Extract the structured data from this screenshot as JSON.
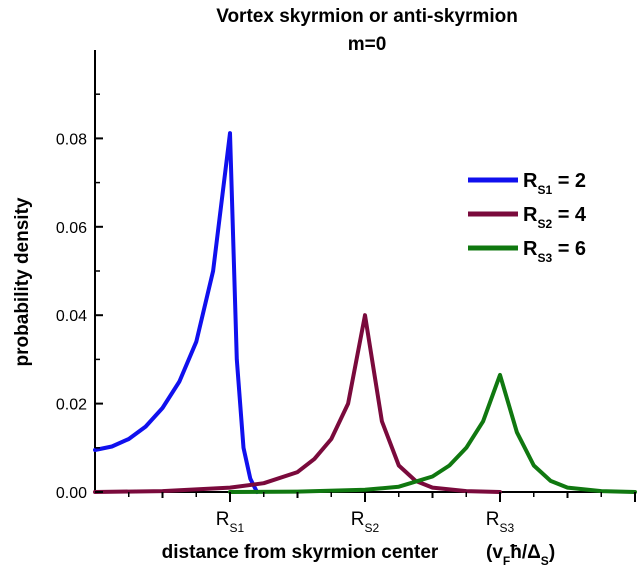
{
  "chart_data": {
    "type": "line",
    "title": "Vortex skyrmion or anti-skyrmion",
    "subtitle": "m=0",
    "xlabel": "distance from skyrmion center",
    "x_unit": "(v_Fħ/Δ_S)",
    "ylabel": "probability density",
    "ylim": [
      0,
      0.1
    ],
    "yticks": [
      "0.00",
      "0.02",
      "0.04",
      "0.06",
      "0.08"
    ],
    "x_tick_labels": [
      "R_S1",
      "R_S2",
      "R_S3"
    ],
    "xlim": [
      0,
      8
    ],
    "grid": false,
    "legend_position": "right",
    "series": [
      {
        "name": "R_S1 = 2",
        "color": "#1010ee",
        "x": [
          0,
          0.25,
          0.5,
          0.75,
          1.0,
          1.25,
          1.5,
          1.75,
          2.0,
          2.1,
          2.2,
          2.3,
          2.4
        ],
        "y": [
          0.0095,
          0.0103,
          0.012,
          0.0148,
          0.019,
          0.025,
          0.034,
          0.05,
          0.0812,
          0.03,
          0.01,
          0.003,
          0.0
        ]
      },
      {
        "name": "R_S2 = 4",
        "color": "#7a0a3c",
        "x": [
          0,
          1.0,
          2.0,
          2.5,
          3.0,
          3.25,
          3.5,
          3.75,
          4.0,
          4.25,
          4.5,
          4.75,
          5.0,
          5.5,
          6.0
        ],
        "y": [
          0.0,
          0.0002,
          0.001,
          0.002,
          0.0045,
          0.0075,
          0.012,
          0.02,
          0.04,
          0.016,
          0.006,
          0.0025,
          0.001,
          0.0002,
          0.0
        ]
      },
      {
        "name": "R_S3 = 6",
        "color": "#107810",
        "x": [
          2.0,
          3.0,
          4.0,
          4.5,
          5.0,
          5.25,
          5.5,
          5.75,
          6.0,
          6.25,
          6.5,
          6.75,
          7.0,
          7.5,
          8.0
        ],
        "y": [
          0.0,
          0.0001,
          0.0005,
          0.0012,
          0.0035,
          0.006,
          0.01,
          0.016,
          0.0265,
          0.0135,
          0.006,
          0.0025,
          0.001,
          0.0002,
          0.0
        ]
      }
    ],
    "legend": [
      {
        "prefix": "R",
        "sub": "S1",
        "suffix": " = 2"
      },
      {
        "prefix": "R",
        "sub": "S2",
        "suffix": " = 4"
      },
      {
        "prefix": "R",
        "sub": "S3",
        "suffix": " = 6"
      }
    ],
    "x_category_labels": [
      {
        "prefix": "R",
        "sub": "S1",
        "x": 2
      },
      {
        "prefix": "R",
        "sub": "S2",
        "x": 4
      },
      {
        "prefix": "R",
        "sub": "S3",
        "x": 6
      }
    ],
    "unit_label": {
      "open": "(v",
      "sub1": "F",
      "hbar": "ħ/Δ",
      "sub2": "S",
      "close": ")"
    }
  }
}
